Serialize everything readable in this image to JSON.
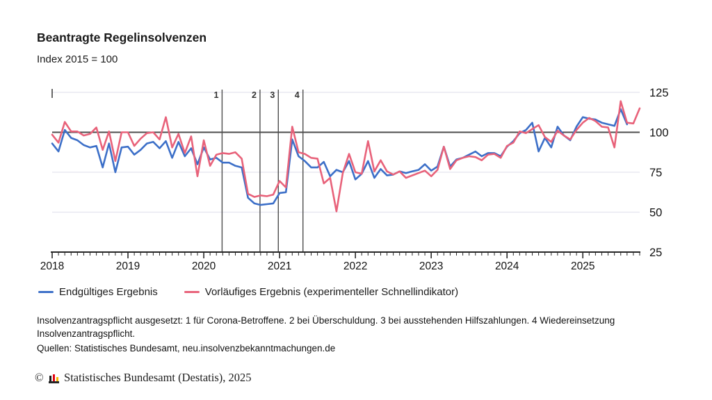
{
  "page": {
    "title": "Beantragte Regelinsolvenzen",
    "subtitle": "Index 2015 = 100"
  },
  "chart_data": {
    "type": "line",
    "title": "Beantragte Regelinsolvenzen",
    "unit": "Index 2015 = 100",
    "x_start": "2018-01",
    "x_end": "2025-10",
    "months_total": 94,
    "ylim": [
      25,
      125
    ],
    "y_ticks": [
      125,
      100,
      75,
      50,
      25
    ],
    "reference_line": 100,
    "grid": "horizontal",
    "legend_position": "bottom",
    "colors": {
      "final": "#3c6fc8",
      "preliminary": "#e8627a",
      "gridline": "#e3e3ee",
      "reference": "#4d4d4d",
      "axis": "#262626"
    },
    "x_year_ticks": [
      {
        "label": "2018",
        "month": 0
      },
      {
        "label": "2019",
        "month": 12
      },
      {
        "label": "2020",
        "month": 24
      },
      {
        "label": "2021",
        "month": 36
      },
      {
        "label": "2022",
        "month": 48
      },
      {
        "label": "2023",
        "month": 60
      },
      {
        "label": "2024",
        "month": 72
      },
      {
        "label": "2025",
        "month": 84
      }
    ],
    "annotations": [
      {
        "label": "1",
        "month": 26.9
      },
      {
        "label": "2",
        "month": 32.9
      },
      {
        "label": "3",
        "month": 35.8
      },
      {
        "label": "4",
        "month": 39.7
      }
    ],
    "series": [
      {
        "name": "Endgültiges Ergebnis",
        "color": "#3c6fc8",
        "values": [
          93,
          88,
          101.5,
          96.5,
          95,
          92,
          90.5,
          91.5,
          78,
          93,
          75,
          90.5,
          91,
          86,
          89,
          93,
          94,
          90,
          94.5,
          84,
          94,
          85,
          90,
          80,
          90.5,
          83,
          84,
          81,
          81,
          79,
          78,
          59,
          55.5,
          54.5,
          55,
          55.5,
          62,
          62.5,
          95.5,
          85,
          82,
          78,
          78,
          81.5,
          72.5,
          76.5,
          75,
          82,
          70.5,
          74,
          82,
          71.5,
          77,
          73,
          73.5,
          75.5,
          74.5,
          75.5,
          76.5,
          80,
          76,
          78.5,
          91,
          78.5,
          83,
          84,
          86,
          88,
          85,
          87,
          87,
          85,
          91,
          94.5,
          99.5,
          101.5,
          106,
          88,
          96.5,
          90.5,
          103.5,
          98,
          95,
          103.5,
          109.5,
          108.5,
          108,
          106,
          105,
          104,
          114.5,
          105,
          null,
          null
        ]
      },
      {
        "name": "Vorläufiges Ergebnis (experimenteller Schnellindikator)",
        "color": "#e8627a",
        "values": [
          98.5,
          93.5,
          106.5,
          100.5,
          100.5,
          98,
          99,
          103,
          89,
          100.5,
          82,
          100,
          100,
          91.5,
          96,
          99.5,
          100,
          95.5,
          109.5,
          90.5,
          99,
          87,
          97.5,
          72.5,
          95,
          79,
          86,
          87,
          86.5,
          87.5,
          83.5,
          61.5,
          59.5,
          60.5,
          60,
          61,
          69.5,
          65.5,
          103.5,
          87.5,
          86.5,
          84,
          83.5,
          68,
          71.5,
          50.5,
          74.5,
          86.5,
          75,
          74,
          94.5,
          75.5,
          82.5,
          75.5,
          73.5,
          75.5,
          71.5,
          73,
          74.5,
          76,
          72.5,
          76.5,
          91,
          77,
          82.5,
          84,
          85,
          84.5,
          82.5,
          86,
          86.5,
          84,
          91.5,
          93.5,
          100.5,
          99.5,
          102,
          104.5,
          97,
          94,
          101,
          98,
          95.5,
          101.5,
          106,
          109,
          107,
          103.5,
          103,
          90.5,
          119.5,
          106,
          105.5,
          115
        ]
      }
    ]
  },
  "footnotes": {
    "note": "Insolvenzantragspflicht ausgesetzt: 1 für Corona-Betroffene. 2 bei Überschuldung. 3 bei ausstehenden Hilfszahlungen. 4 Wiedereinsetzung Insolvenzantragspflicht.",
    "sources": "Quellen: Statistisches Bundesamt, neu.insolvenzbekanntmachungen.de"
  },
  "copyright": {
    "symbol": "©",
    "text": "Statistisches Bundesamt (Destatis), 2025"
  }
}
